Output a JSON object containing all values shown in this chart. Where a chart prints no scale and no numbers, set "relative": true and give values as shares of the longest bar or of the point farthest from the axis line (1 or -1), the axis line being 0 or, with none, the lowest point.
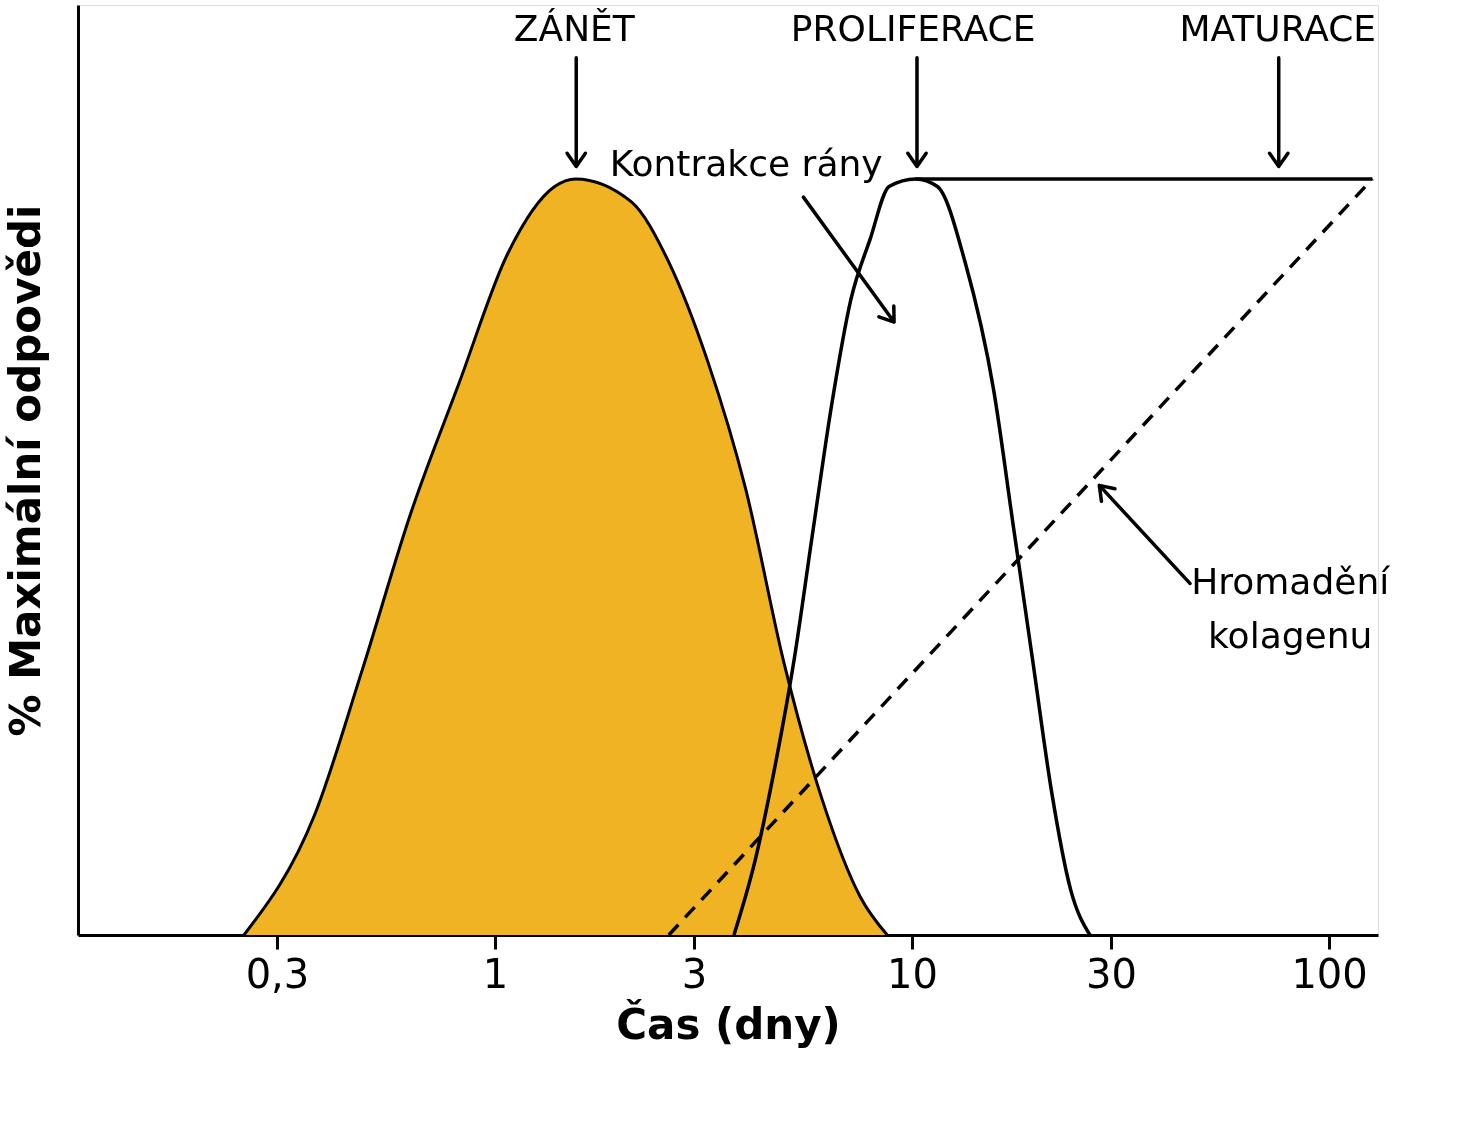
{
  "chart_data": {
    "type": "line",
    "relative": true,
    "xlabel": "Čas (dny)",
    "ylabel": "% Maximální odpovědi",
    "log": "x",
    "xlim": [
      0.1,
      131
    ],
    "xticks": [
      {
        "value": 0.3,
        "label": "0,3"
      },
      1,
      3,
      10,
      30,
      100
    ],
    "series": [
      {
        "type": "area",
        "color": "#f0b323",
        "x": [
          0.25,
          0.37,
          0.48,
          0.63,
          0.82,
          1.07,
          1.39,
          1.56,
          2.12,
          2.61,
          3.23,
          3.99,
          4.93,
          6.08,
          7.52,
          8.72
        ],
        "values": [
          0,
          0.16,
          0.35,
          0.56,
          0.73,
          0.9,
          0.99,
          1,
          0.97,
          0.89,
          0.76,
          0.59,
          0.36,
          0.18,
          0.05,
          0
        ]
      },
      {
        "color": "#000000",
        "x": [
          3.74,
          4.21,
          4.68,
          5.2,
          5.77,
          6.41,
          7.13,
          7.93,
          8.81,
          10.2,
          11.5,
          13.4,
          15.7,
          17.5,
          19.5,
          21.6,
          24.0,
          26.7
        ],
        "values": [
          0,
          0.1,
          0.22,
          0.36,
          0.53,
          0.7,
          0.84,
          0.92,
          0.99,
          1,
          0.99,
          0.89,
          0.72,
          0.54,
          0.36,
          0.19,
          0.06,
          0
        ]
      },
      {
        "color": "#000000",
        "x": [
          10.2,
          127
        ],
        "values": [
          1,
          1
        ]
      },
      {
        "color": "#000000",
        "line_style": "dashed",
        "x": [
          2.61,
          127
        ],
        "values": [
          0,
          1
        ]
      }
    ],
    "annotations": [
      "ZÁNĚT",
      "PROLIFERACE",
      "MATURACE",
      "Kontrakce rány",
      "Hromadění\nkolagenu"
    ]
  }
}
